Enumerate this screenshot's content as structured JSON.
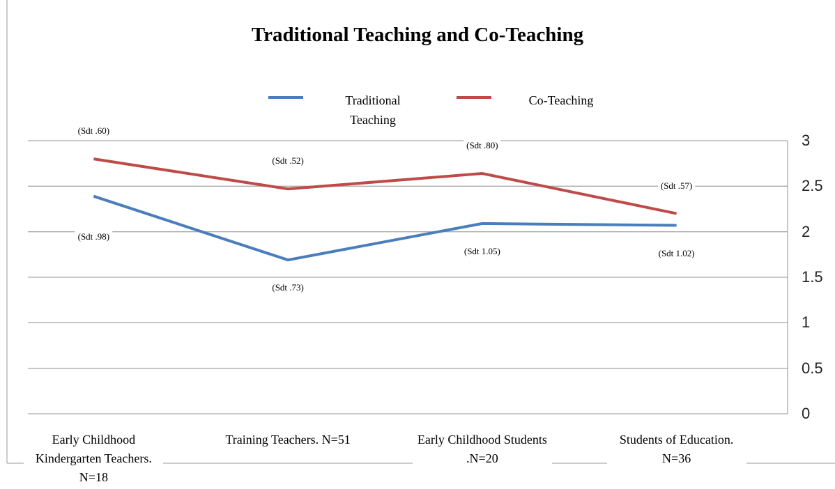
{
  "chart_data": {
    "type": "line",
    "title": "Traditional Teaching and Co-Teaching",
    "categories": [
      "Early Childhood Kindergarten Teachers. N=18",
      "Training Teachers. N=51",
      "Early Childhood Students .N=20",
      "Students of Education. N=36"
    ],
    "series": [
      {
        "name": "Traditional Teaching",
        "color": "#4a7ebb",
        "values": [
          2.39,
          1.69,
          2.09,
          2.07
        ],
        "sd_labels": [
          "(Sdt .98)",
          "(Sdt .73)",
          "(Sdt 1.05)",
          "(Sdt 1.02)"
        ]
      },
      {
        "name": "Co-Teaching",
        "color": "#be4b48",
        "values": [
          2.8,
          2.47,
          2.64,
          2.2
        ],
        "sd_labels": [
          "(Sdt .60)",
          "(Sdt .52)",
          "(Sdt .80)",
          "(Sdt .57)"
        ]
      }
    ],
    "ylim": [
      0,
      3
    ],
    "yticks": [
      0,
      0.5,
      1,
      1.5,
      2,
      2.5,
      3
    ],
    "grid": true,
    "y_axis_side": "right",
    "legend": "top"
  }
}
